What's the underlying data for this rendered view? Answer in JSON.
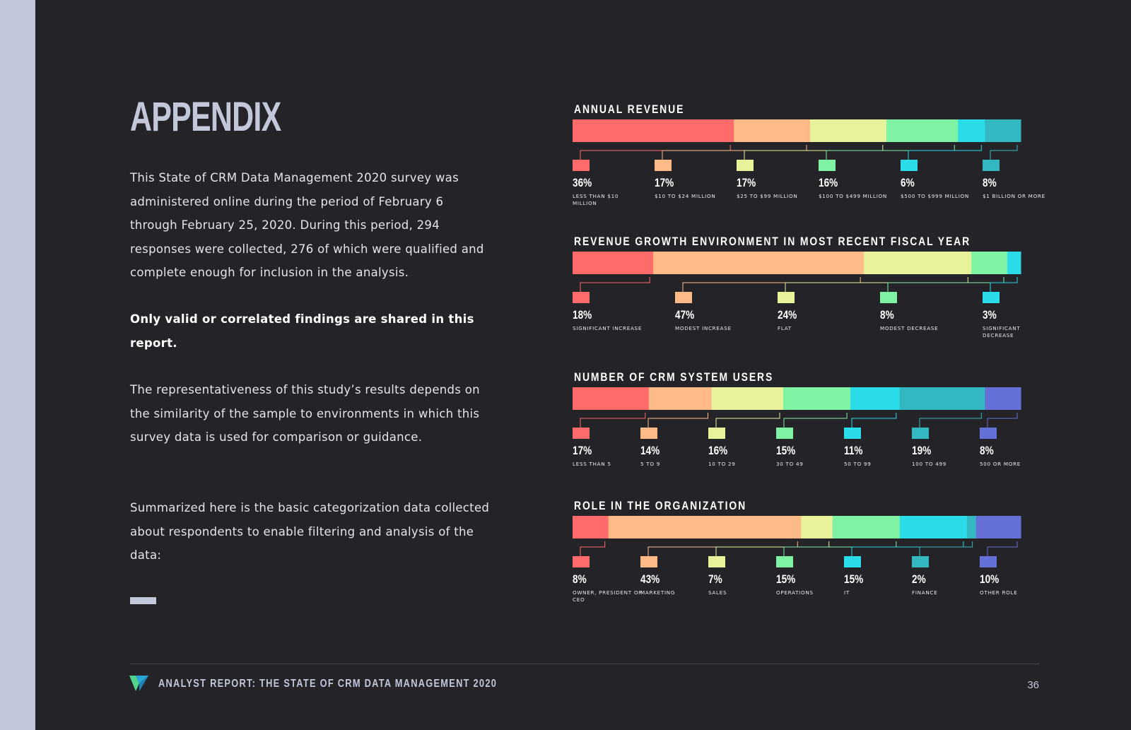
{
  "title": "APPENDIX",
  "paragraphs": [
    "This State of CRM Data Management 2020 survey was administered online during the period of February 6 through February 25, 2020.  During this period, 294 responses were collected, 276 of which were qualified and complete enough for inclusion in the analysis.",
    "Only valid or correlated findings are shared in this report.",
    "The representativeness of this study’s results depends on the similarity of the sample to environments in which this survey data is used for comparison or guidance.",
    "Summarized here is the basic categorization data collected about respondents to enable filtering and analysis of the data:"
  ],
  "footer": {
    "report_title": "ANALYST REPORT: THE STATE OF CRM DATA MANAGEMENT 2020",
    "page_number": "36",
    "logo_icon": "v-logo-icon"
  },
  "colors": {
    "background": "#232328",
    "accent": "#c3c7da"
  },
  "chart_data": [
    {
      "type": "bar",
      "stacked": true,
      "title": "ANNUAL REVENUE",
      "categories": [
        "LESS THAN $10 MILLION",
        "$10 TO $24 MILLION",
        "$25 TO $99 MILLION",
        "$100 TO $499 MILLION",
        "$500 TO $999 MILLION",
        "$1 BILLION OR MORE"
      ],
      "values": [
        36,
        17,
        17,
        16,
        6,
        8
      ],
      "labels": [
        "36%",
        "17%",
        "17%",
        "16%",
        "6%",
        "8%"
      ],
      "colors": [
        "#ff6b6b",
        "#ffbb87",
        "#e8f29a",
        "#7ff2a4",
        "#2adbe8",
        "#33b8c2"
      ]
    },
    {
      "type": "bar",
      "stacked": true,
      "title": "REVENUE GROWTH ENVIRONMENT IN MOST RECENT FISCAL YEAR",
      "categories": [
        "SIGNIFICANT INCREASE",
        "MODEST INCREASE",
        "FLAT",
        "MODEST DECREASE",
        "SIGNIFICANT DECREASE"
      ],
      "values": [
        18,
        47,
        24,
        8,
        3
      ],
      "labels": [
        "18%",
        "47%",
        "24%",
        "8%",
        "3%"
      ],
      "colors": [
        "#ff6b6b",
        "#ffbb87",
        "#e8f29a",
        "#7ff2a4",
        "#2adbe8"
      ]
    },
    {
      "type": "bar",
      "stacked": true,
      "title": "NUMBER OF CRM SYSTEM USERS",
      "categories": [
        "LESS THAN 5",
        "5 TO 9",
        "10 TO 29",
        "30 TO 49",
        "50 TO 99",
        "100 TO 499",
        "500 OR MORE"
      ],
      "values": [
        17,
        14,
        16,
        15,
        11,
        19,
        8
      ],
      "labels": [
        "17%",
        "14%",
        "16%",
        "15%",
        "11%",
        "19%",
        "8%"
      ],
      "colors": [
        "#ff6b6b",
        "#ffbb87",
        "#e8f29a",
        "#7ff2a4",
        "#2adbe8",
        "#33b8c2",
        "#6570d9"
      ]
    },
    {
      "type": "bar",
      "stacked": true,
      "title": "ROLE IN THE ORGANIZATION",
      "categories": [
        "OWNER, PRESIDENT OR CEO",
        "MARKETING",
        "SALES",
        "OPERATIONS",
        "IT",
        "FINANCE",
        "OTHER ROLE"
      ],
      "values": [
        8,
        43,
        7,
        15,
        15,
        2,
        10
      ],
      "labels": [
        "8%",
        "43%",
        "7%",
        "15%",
        "15%",
        "2%",
        "10%"
      ],
      "colors": [
        "#ff6b6b",
        "#ffbb87",
        "#e8f29a",
        "#7ff2a4",
        "#2adbe8",
        "#33b8c2",
        "#6570d9"
      ]
    }
  ]
}
